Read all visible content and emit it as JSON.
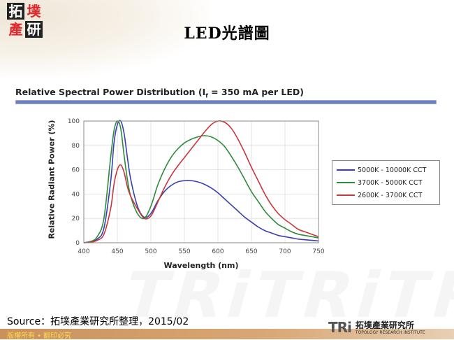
{
  "header": {
    "logo_chars": [
      "拓",
      "墣",
      "產",
      "研"
    ],
    "title": "LED光譜圖"
  },
  "chart_data": {
    "type": "line",
    "title": "Relative Spectral Power Distribution (Iᶠ = 350 mA per LED)",
    "title_text": "Relative Spectral Power Distribution (I",
    "title_sub": "f",
    "title_rest": " = 350 mA per LED)",
    "xlabel": "Wavelength (nm)",
    "ylabel": "Relative Radiant Power (%)",
    "xlim": [
      400,
      750
    ],
    "ylim": [
      0,
      100
    ],
    "xticks": [
      400,
      450,
      500,
      550,
      600,
      650,
      700,
      750
    ],
    "yticks": [
      0,
      20,
      40,
      60,
      80,
      100
    ],
    "grid": true,
    "legend_position": "right",
    "x": [
      400,
      410,
      420,
      430,
      440,
      445,
      450,
      455,
      460,
      465,
      470,
      480,
      490,
      500,
      510,
      520,
      530,
      540,
      550,
      560,
      570,
      580,
      590,
      600,
      610,
      620,
      630,
      640,
      650,
      660,
      670,
      680,
      690,
      700,
      710,
      720,
      730,
      740,
      750
    ],
    "series": [
      {
        "name": "5000K - 10000K CCT",
        "color": "#3a3fb0",
        "values": [
          0,
          1,
          3,
          12,
          50,
          82,
          97,
          100,
          90,
          70,
          52,
          30,
          21,
          24,
          34,
          42,
          47,
          50,
          51,
          51,
          50,
          48,
          45,
          41,
          36,
          31,
          26,
          21,
          17,
          13,
          10,
          8,
          6,
          5,
          4,
          3,
          2.5,
          2,
          1.5
        ]
      },
      {
        "name": "3700K - 5000K CCT",
        "color": "#2e8b3a",
        "values": [
          0,
          1,
          5,
          20,
          70,
          92,
          100,
          94,
          72,
          52,
          38,
          24,
          20,
          30,
          47,
          60,
          70,
          77,
          82,
          85,
          87,
          88,
          87,
          84,
          79,
          71,
          62,
          52,
          42,
          34,
          26,
          20,
          15,
          12,
          9,
          7,
          6,
          5,
          4
        ]
      },
      {
        "name": "2600K - 3700K CCT",
        "color": "#c8373a",
        "values": [
          0,
          0.5,
          2,
          7,
          28,
          48,
          60,
          64,
          58,
          46,
          38,
          28,
          20,
          22,
          33,
          45,
          55,
          63,
          70,
          77,
          84,
          91,
          97,
          100,
          99,
          94,
          85,
          74,
          62,
          51,
          40,
          31,
          24,
          19,
          15,
          11,
          9,
          7,
          5
        ]
      }
    ]
  },
  "footer": {
    "source": "Source：拓墣產業研究所整理，2015/02",
    "copyright": "版權所有 • 翻印必究",
    "brand_mark": "TRi",
    "brand_cn": "拓墣產業研究所",
    "brand_en": "TOPOLOGY RESEARCH INSTITUTE"
  }
}
